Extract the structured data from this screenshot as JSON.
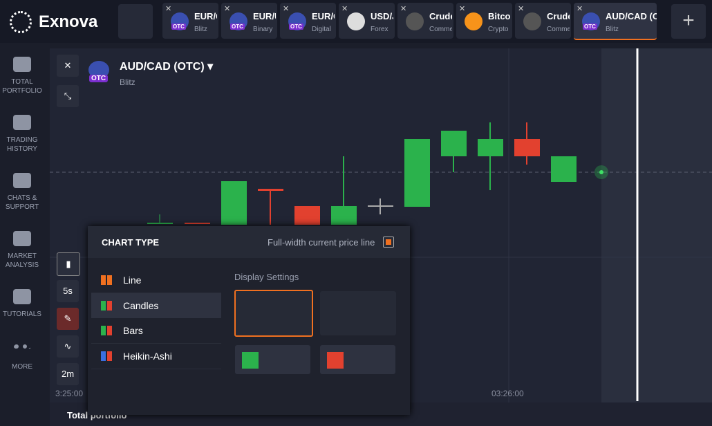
{
  "header": {
    "logo": "Exnova",
    "tabs": [
      {
        "name": "EUR/G",
        "sub": "Blitz",
        "badge": "OTC"
      },
      {
        "name": "EUR/U",
        "sub": "Binary",
        "badge": "OTC"
      },
      {
        "name": "EUR/G",
        "sub": "Digital",
        "badge": "OTC"
      },
      {
        "name": "USD/J",
        "sub": "Forex"
      },
      {
        "name": "Crude",
        "sub": "Comme"
      },
      {
        "name": "Bitcoin",
        "sub": "Crypto"
      },
      {
        "name": "Crude",
        "sub": "Comme"
      },
      {
        "name": "AUD/CAD (O...",
        "sub": "Blitz",
        "badge": "OTC"
      }
    ]
  },
  "sidebar": [
    "TOTAL PORTFOLIO",
    "TRADING HISTORY",
    "CHATS & SUPPORT",
    "MARKET ANALYSIS",
    "TUTORIALS",
    "MORE"
  ],
  "asset": {
    "name": "AUD/CAD (OTC)",
    "sub": "Blitz",
    "badge": "OTC"
  },
  "tools": {
    "period": "5s",
    "timeframe": "2m"
  },
  "time_labels": [
    "3:25:00",
    "03:26:00"
  ],
  "footer": "Total portfolio",
  "panel": {
    "title": "CHART TYPE",
    "price_line": "Full-width current price line",
    "types": [
      "Line",
      "Candles",
      "Bars",
      "Heikin-Ashi"
    ],
    "display_settings": "Display Settings"
  }
}
